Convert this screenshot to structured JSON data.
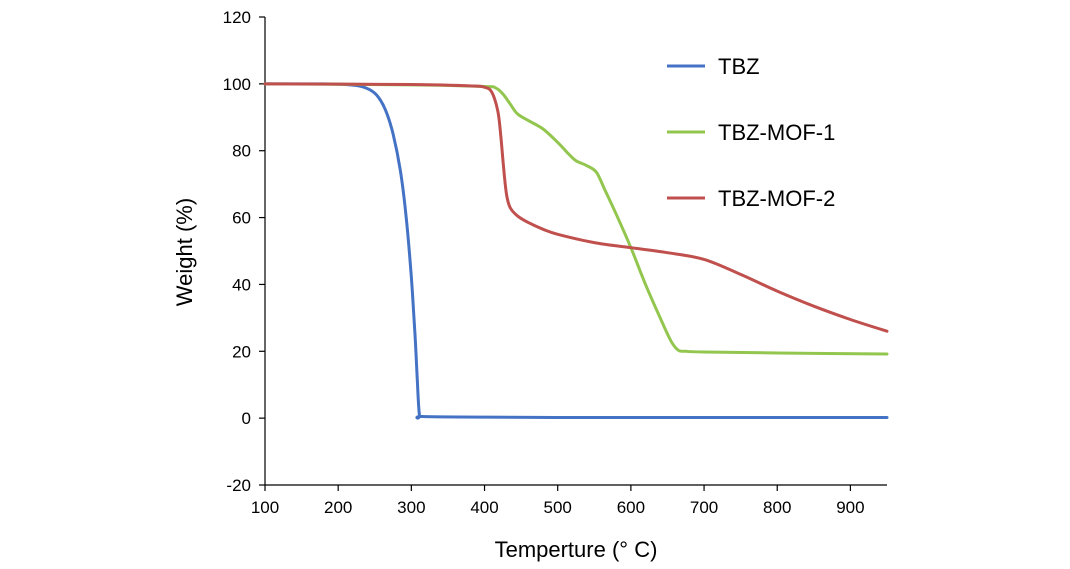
{
  "chart_data": {
    "type": "line",
    "title": "",
    "xlabel": "Temperture (° C)",
    "ylabel": "Weight (%)",
    "xlim": [
      100,
      950
    ],
    "ylim": [
      -20,
      120
    ],
    "x_ticks": [
      100,
      200,
      300,
      400,
      500,
      600,
      700,
      800,
      900
    ],
    "y_ticks": [
      -20,
      0,
      20,
      40,
      60,
      80,
      100,
      120
    ],
    "x_tick_labels": [
      "100",
      "200",
      "300",
      "400",
      "500",
      "600",
      "700",
      "800",
      "900"
    ],
    "y_tick_labels": [
      "-20",
      "0",
      "20",
      "40",
      "60",
      "80",
      "100",
      "120"
    ],
    "grid": false,
    "legend_position": "top-right",
    "series": [
      {
        "name": "TBZ",
        "color": "#4472C4",
        "points": [
          [
            100,
            100
          ],
          [
            180,
            100
          ],
          [
            210,
            99.8
          ],
          [
            230,
            99.3
          ],
          [
            245,
            98
          ],
          [
            255,
            96
          ],
          [
            265,
            92
          ],
          [
            275,
            85
          ],
          [
            285,
            74
          ],
          [
            293,
            60
          ],
          [
            300,
            42
          ],
          [
            305,
            25
          ],
          [
            308,
            12
          ],
          [
            311,
            1
          ],
          [
            315,
            0.5
          ],
          [
            400,
            0.3
          ],
          [
            500,
            0.2
          ],
          [
            600,
            0.2
          ],
          [
            700,
            0.2
          ],
          [
            800,
            0.2
          ],
          [
            950,
            0.2
          ]
        ]
      },
      {
        "name": "TBZ-MOF-1",
        "color": "#92C64E",
        "points": [
          [
            100,
            100
          ],
          [
            300,
            99.7
          ],
          [
            400,
            99.2
          ],
          [
            415,
            98.8
          ],
          [
            425,
            97
          ],
          [
            435,
            94
          ],
          [
            445,
            91
          ],
          [
            460,
            89
          ],
          [
            480,
            86.5
          ],
          [
            500,
            82.5
          ],
          [
            515,
            79
          ],
          [
            525,
            77
          ],
          [
            540,
            75.5
          ],
          [
            553,
            73.5
          ],
          [
            565,
            68
          ],
          [
            580,
            61
          ],
          [
            600,
            51
          ],
          [
            620,
            40
          ],
          [
            640,
            30
          ],
          [
            655,
            23
          ],
          [
            665,
            20.3
          ],
          [
            675,
            20
          ],
          [
            700,
            19.8
          ],
          [
            800,
            19.5
          ],
          [
            950,
            19.2
          ]
        ]
      },
      {
        "name": "TBZ-MOF-2",
        "color": "#C0504D",
        "points": [
          [
            100,
            100
          ],
          [
            300,
            99.8
          ],
          [
            380,
            99.4
          ],
          [
            400,
            99
          ],
          [
            410,
            97.5
          ],
          [
            418,
            92
          ],
          [
            422,
            85
          ],
          [
            426,
            75
          ],
          [
            430,
            67
          ],
          [
            435,
            63
          ],
          [
            445,
            60.5
          ],
          [
            460,
            58.5
          ],
          [
            480,
            56.5
          ],
          [
            500,
            55
          ],
          [
            550,
            52.5
          ],
          [
            600,
            51
          ],
          [
            650,
            49.5
          ],
          [
            700,
            47.5
          ],
          [
            750,
            43
          ],
          [
            800,
            38
          ],
          [
            850,
            33.5
          ],
          [
            900,
            29.5
          ],
          [
            950,
            26
          ]
        ]
      }
    ]
  }
}
